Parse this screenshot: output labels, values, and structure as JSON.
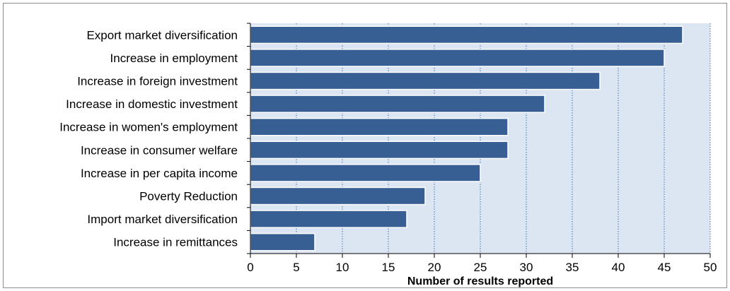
{
  "chart_data": {
    "type": "bar",
    "orientation": "horizontal",
    "categories": [
      "Export market diversification",
      "Increase in employment",
      "Increase in foreign investment",
      "Increase in domestic investment",
      "Increase in women's employment",
      "Increase in consumer welfare",
      "Increase in per capita income",
      "Poverty Reduction",
      "Import market diversification",
      "Increase in remittances"
    ],
    "values": [
      47,
      45,
      38,
      32,
      28,
      28,
      25,
      19,
      17,
      7
    ],
    "xlabel": "Number of results reported",
    "ylabel": "",
    "title": "",
    "xlim": [
      0,
      50
    ],
    "xticks": [
      "0",
      "5",
      "10",
      "15",
      "20",
      "25",
      "30",
      "35",
      "40",
      "45",
      "50"
    ],
    "grid": "vertical dotted",
    "colors": {
      "bar": "#375f93",
      "bar_border": "#ffffff",
      "plot_background": "#dce6f2",
      "grid": "#3f6fb3",
      "axis": "#000000"
    }
  }
}
